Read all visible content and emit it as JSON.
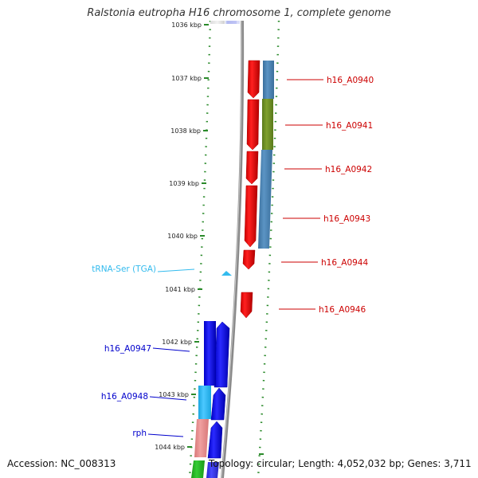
{
  "title": "Ralstonia eutropha H16 chromosome 1, complete genome",
  "footer": {
    "accession": "Accession: NC_008313",
    "topology": "Topology: circular; Length: 4,052,032 bp; Genes: 3,711"
  },
  "colors": {
    "cds": "#ff0000",
    "gene_blue": "#0000ff",
    "trna": "#33bbee",
    "rrna_pink": "#e88888",
    "steelblue": "#4682b4",
    "olive": "#6b8e23",
    "cyan": "#1eb4f0",
    "green": "#22bb22",
    "tick": "#2a8a2a",
    "backbone": "#888888"
  },
  "scale": {
    "ticks": [
      {
        "label": "1036 kbp"
      },
      {
        "label": "1037 kbp"
      },
      {
        "label": "1038 kbp"
      },
      {
        "label": "1039 kbp"
      },
      {
        "label": "1040 kbp"
      },
      {
        "label": "1041 kbp"
      },
      {
        "label": "1042 kbp"
      },
      {
        "label": "1043 kbp"
      },
      {
        "label": "1044 kbp"
      }
    ]
  },
  "genes_right": [
    {
      "name": "h16_A0940",
      "color": "#cc0000"
    },
    {
      "name": "h16_A0941",
      "color": "#cc0000"
    },
    {
      "name": "h16_A0942",
      "color": "#cc0000"
    },
    {
      "name": "h16_A0943",
      "color": "#cc0000"
    },
    {
      "name": "h16_A0944",
      "color": "#cc0000"
    },
    {
      "name": "h16_A0946",
      "color": "#cc0000"
    }
  ],
  "genes_left": [
    {
      "name": "tRNA-Ser (TGA)",
      "color": "#33bbee"
    },
    {
      "name": "h16_A0947",
      "color": "#0000cc"
    },
    {
      "name": "h16_A0948",
      "color": "#0000cc"
    },
    {
      "name": "rph",
      "color": "#0000cc"
    }
  ]
}
